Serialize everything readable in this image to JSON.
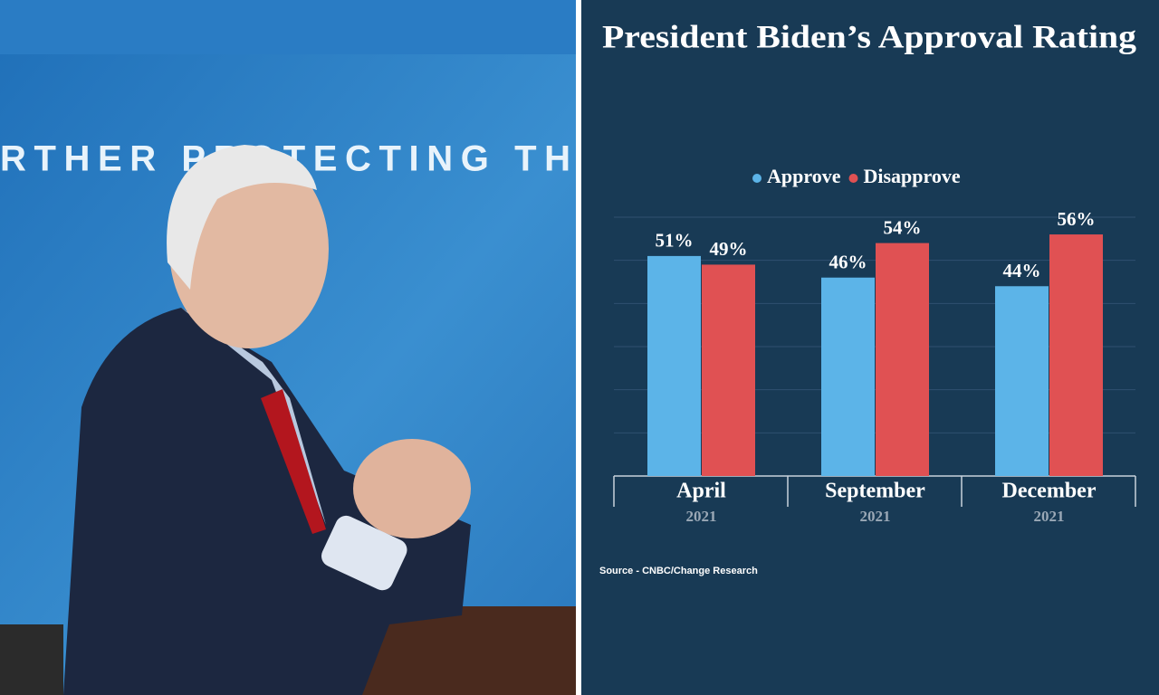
{
  "photo": {
    "texts": [
      "RTHER PROTECTING TH"
    ]
  },
  "chart_data": {
    "type": "bar",
    "title": "President Biden’s Approval Rating",
    "categories": [
      "April",
      "September",
      "December"
    ],
    "category_sublabels": [
      "2021",
      "2021",
      "2021"
    ],
    "series": [
      {
        "name": "Approve",
        "color": "#5cb4e8",
        "values": [
          51,
          46,
          44
        ],
        "value_labels": [
          "51%",
          "46%",
          "44%"
        ]
      },
      {
        "name": "Disapprove",
        "color": "#e05153",
        "values": [
          49,
          54,
          56
        ],
        "value_labels": [
          "49%",
          "54%",
          "56%"
        ]
      }
    ],
    "ylim": [
      0,
      60
    ],
    "yticks": [
      0,
      10,
      20,
      30,
      40,
      50,
      60
    ],
    "grid": true,
    "legend": "top",
    "source": "Source - CNBC/Change Research"
  }
}
